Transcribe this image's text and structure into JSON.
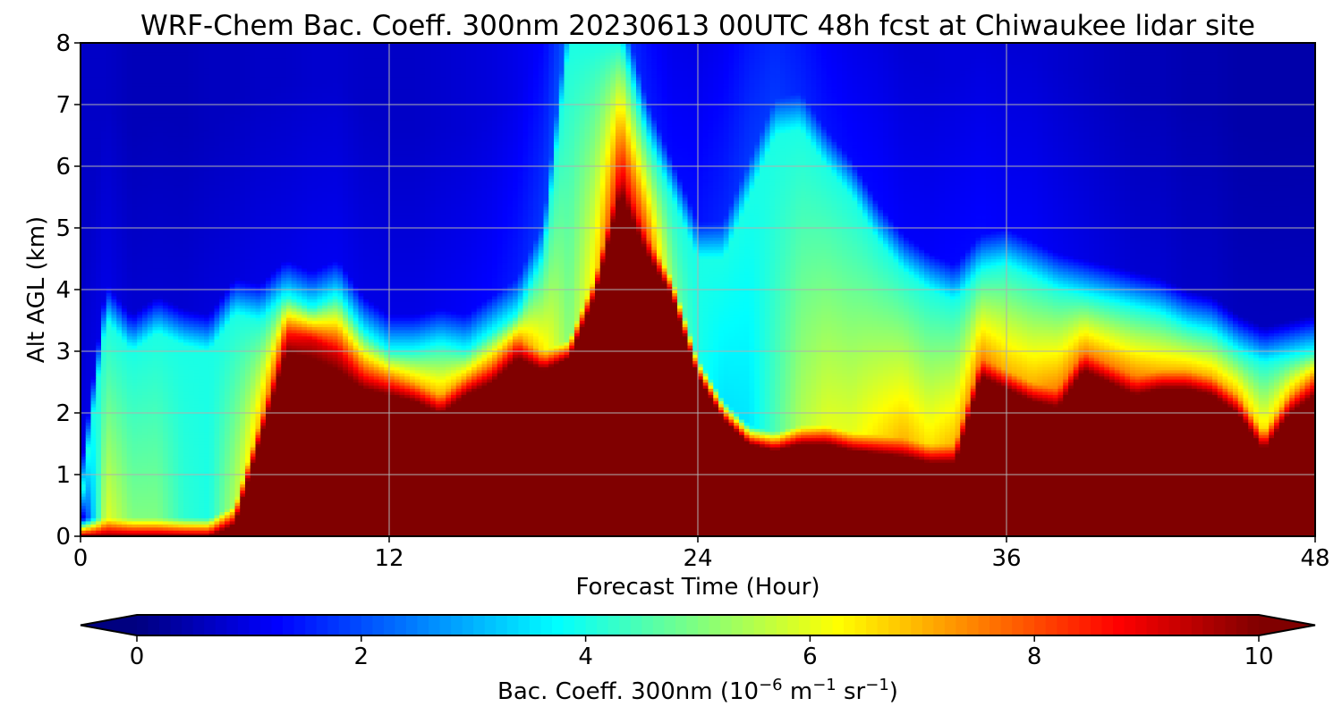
{
  "chart_data": {
    "type": "heatmap",
    "title": "WRF-Chem Bac. Coeff. 300nm  20230613 00UTC 48h fcst at Chiwaukee lidar site",
    "xlabel": "Forecast Time (Hour)",
    "ylabel": "Alt AGL (km)",
    "xlim": [
      0,
      48
    ],
    "ylim": [
      0,
      8
    ],
    "x_ticks": [
      "0",
      "12",
      "24",
      "36",
      "48"
    ],
    "y_ticks": [
      "0",
      "1",
      "2",
      "3",
      "4",
      "5",
      "6",
      "7",
      "8"
    ],
    "grid": true,
    "colormap": "jet",
    "colorbar": {
      "label_main": "Bac. Coeff. 300nm  (10",
      "label_exp1": "−6",
      "label_mid": " m",
      "label_exp2": "−1",
      "label_sr": " sr",
      "label_exp3": "−1",
      "label_close": ")",
      "vmin": 0,
      "vmax": 10,
      "ticks": [
        "0",
        "2",
        "4",
        "6",
        "8",
        "10"
      ],
      "extend": "both"
    },
    "x": [
      0,
      1,
      2,
      3,
      4,
      5,
      6,
      7,
      8,
      9,
      10,
      11,
      12,
      13,
      14,
      15,
      16,
      17,
      18,
      19,
      20,
      21,
      22,
      23,
      24,
      25,
      26,
      27,
      28,
      29,
      30,
      31,
      32,
      33,
      34,
      35,
      36,
      37,
      38,
      39,
      40,
      41,
      42,
      43,
      44,
      45,
      46,
      47,
      48
    ],
    "profiles": {
      "heavy_top_km": [
        0,
        0,
        0,
        0,
        0,
        0,
        0.2,
        1.6,
        3.0,
        2.9,
        2.7,
        2.4,
        2.3,
        2.2,
        2.0,
        2.3,
        2.5,
        2.9,
        2.7,
        2.9,
        3.9,
        5.6,
        4.6,
        3.9,
        2.6,
        1.9,
        1.5,
        1.4,
        1.5,
        1.5,
        1.4,
        1.35,
        1.3,
        1.2,
        1.2,
        2.6,
        2.4,
        2.2,
        2.1,
        2.7,
        2.5,
        2.3,
        2.4,
        2.4,
        2.3,
        2.0,
        1.4,
        2.0,
        2.3
      ],
      "plume_top_km": [
        0.5,
        3.5,
        3.0,
        3.3,
        3.1,
        3.0,
        3.6,
        3.5,
        3.9,
        3.7,
        3.9,
        3.3,
        3.0,
        3.0,
        3.1,
        3.0,
        3.3,
        3.6,
        4.5,
        8.0,
        8.0,
        8.0,
        6.5,
        5.5,
        4.5,
        4.5,
        5.5,
        6.5,
        6.6,
        6.0,
        5.5,
        4.8,
        4.3,
        4.0,
        3.8,
        4.3,
        4.4,
        4.2,
        4.0,
        3.9,
        3.8,
        3.7,
        3.6,
        3.4,
        3.3,
        3.0,
        2.8,
        2.9,
        3.0
      ],
      "plume_max": [
        0.5,
        6.0,
        5.0,
        5.0,
        4.2,
        4.0,
        5.5,
        7.0,
        8.5,
        9.0,
        9.0,
        8.0,
        7.5,
        7.0,
        7.0,
        7.0,
        7.5,
        7.5,
        6.5,
        5.0,
        6.5,
        9.0,
        8.0,
        5.0,
        4.0,
        3.5,
        3.5,
        4.5,
        5.5,
        6.0,
        6.0,
        6.5,
        7.0,
        6.5,
        7.0,
        7.5,
        7.0,
        7.0,
        7.5,
        7.5,
        7.5,
        7.5,
        7.0,
        7.0,
        7.0,
        7.0,
        6.5,
        7.0,
        7.5
      ],
      "background": [
        1.0,
        1.0,
        0.8,
        0.8,
        0.8,
        0.9,
        0.9,
        1.0,
        1.0,
        1.1,
        1.1,
        1.0,
        1.0,
        1.0,
        1.1,
        1.2,
        1.3,
        1.5,
        1.8,
        2.2,
        2.2,
        1.8,
        1.5,
        1.3,
        1.4,
        1.6,
        1.8,
        1.8,
        1.6,
        1.4,
        1.3,
        1.3,
        1.2,
        1.2,
        1.3,
        1.3,
        1.2,
        1.2,
        1.1,
        1.0,
        0.9,
        0.8,
        0.8,
        0.7,
        0.7,
        0.6,
        0.6,
        0.6,
        0.6
      ]
    }
  }
}
